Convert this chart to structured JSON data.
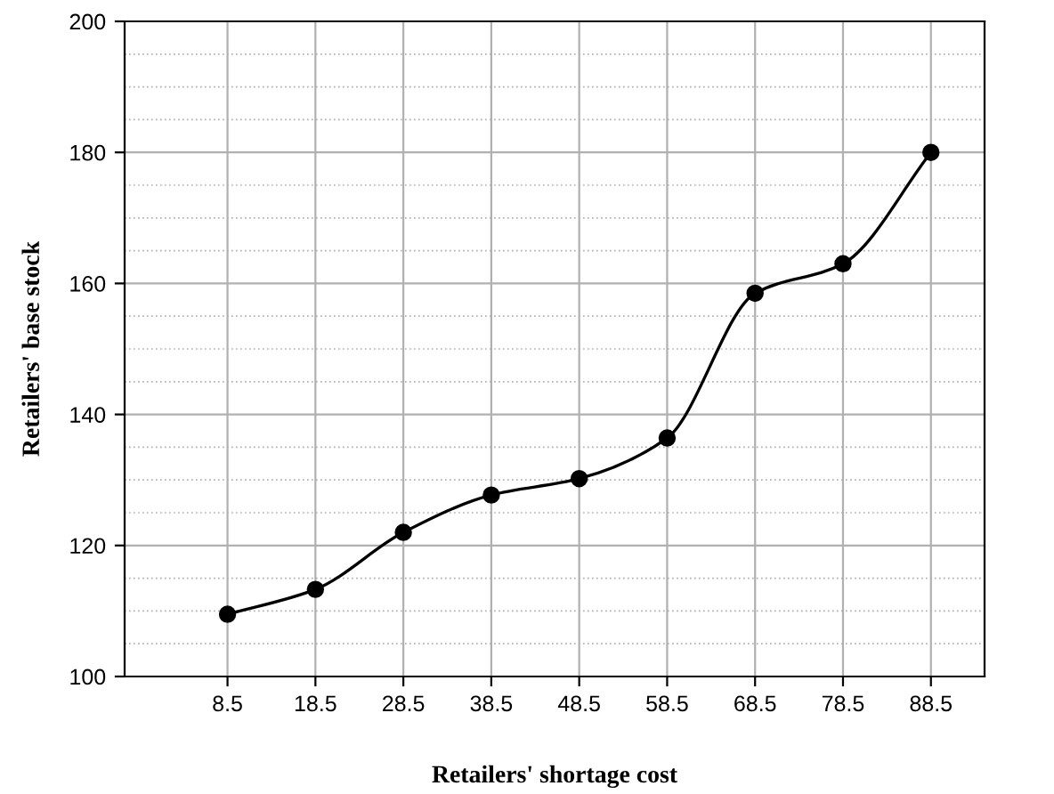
{
  "chart_data": {
    "type": "line",
    "xlabel": "Retailers' shortage cost",
    "ylabel": "Retailers' base stock",
    "x": [
      8.5,
      18.5,
      28.5,
      38.5,
      48.5,
      58.5,
      68.5,
      78.5,
      88.5
    ],
    "series": [
      {
        "color": "#000000",
        "values": [
          109.5,
          113.3,
          122,
          127.7,
          130.2,
          136.4,
          158.5,
          163,
          180
        ]
      }
    ],
    "xlim": [
      -3.2,
      94.6
    ],
    "xticks": [
      8.5,
      18.5,
      28.5,
      38.5,
      48.5,
      58.5,
      68.5,
      78.5,
      88.5
    ],
    "ylim": [
      100,
      200
    ],
    "yticks": [
      100,
      {
        "value": 105,
        "label": null
      },
      {
        "value": 110,
        "label": null
      },
      {
        "value": 115,
        "label": null
      },
      120,
      {
        "value": 125,
        "label": null
      },
      {
        "value": 130,
        "label": null
      },
      {
        "value": 135,
        "label": null
      },
      140,
      {
        "value": 145,
        "label": null
      },
      {
        "value": 150,
        "label": null
      },
      {
        "value": 155,
        "label": null
      },
      160,
      {
        "value": 165,
        "label": null
      },
      {
        "value": 170,
        "label": null
      },
      {
        "value": 175,
        "label": null
      },
      180,
      {
        "value": 185,
        "label": null
      },
      {
        "value": 190,
        "label": null
      },
      {
        "value": 195,
        "label": null
      },
      200
    ],
    "grid": true,
    "marker": "circle",
    "line_style": "solid"
  }
}
